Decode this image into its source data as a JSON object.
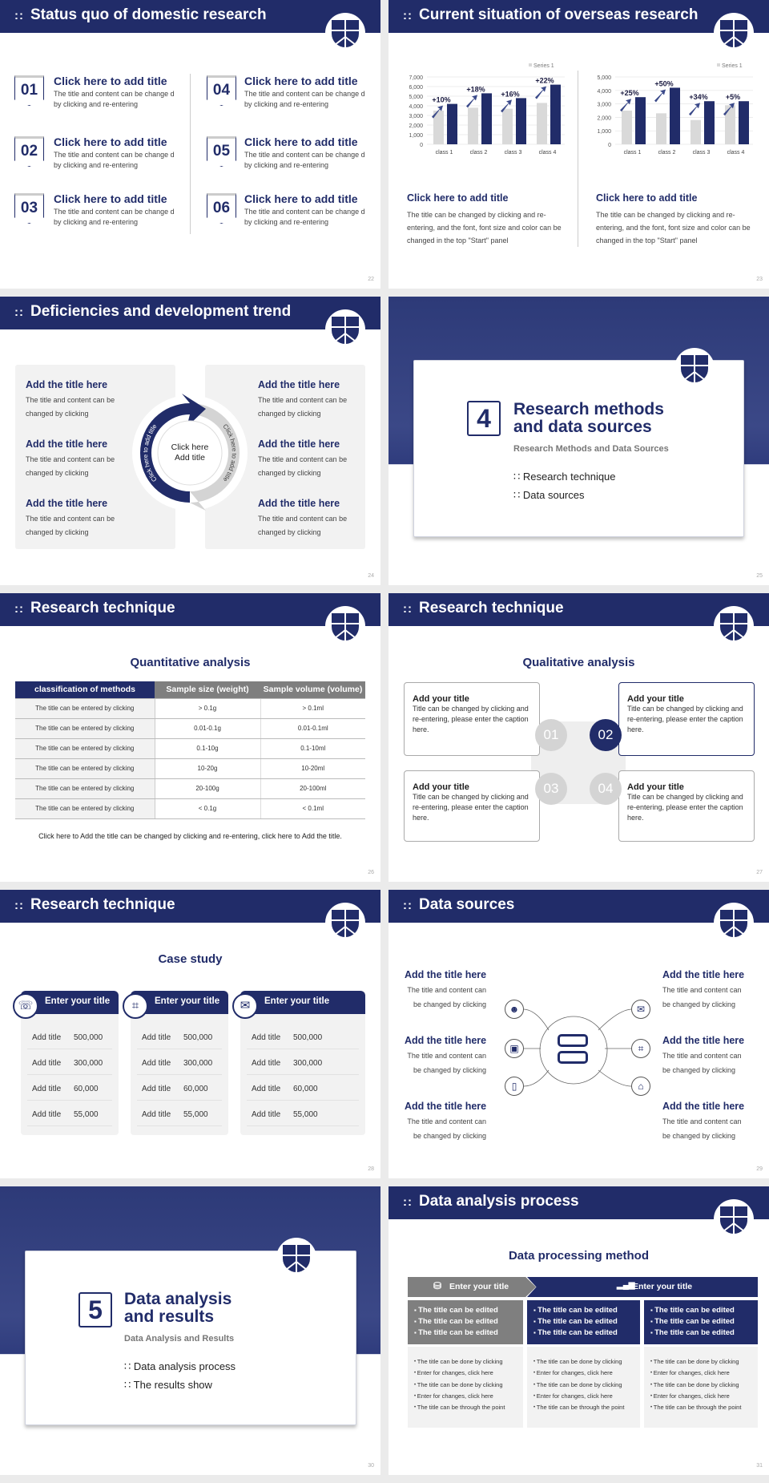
{
  "colors": {
    "navy": "#212c69",
    "gray_bar": "#d9d9d9",
    "panel": "#f2f2f2",
    "gray_header": "#7f7f7f"
  },
  "slides": [
    {
      "title": "Status quo of domestic research",
      "page": "22",
      "items": [
        {
          "num": "01",
          "title": "Click here to add title",
          "desc": "The title and content can be change d by clicking and re-entering"
        },
        {
          "num": "02",
          "title": "Click here to add title",
          "desc": "The title and content can be change d by clicking and re-entering"
        },
        {
          "num": "03",
          "title": "Click here to add title",
          "desc": "The title and content can be change d by clicking and re-entering"
        },
        {
          "num": "04",
          "title": "Click here to add title",
          "desc": "The title and content can be change d by clicking and re-entering"
        },
        {
          "num": "05",
          "title": "Click here to add title",
          "desc": "The title and content can be change d by clicking and re-entering"
        },
        {
          "num": "06",
          "title": "Click here to add title",
          "desc": "The title and content can be change d by clicking and re-entering"
        }
      ]
    },
    {
      "title": "Current situation of overseas research",
      "page": "23",
      "blocks": [
        {
          "title": "Click here to add title",
          "desc": "The title can be changed by clicking and re-entering, and the font, font size and color can be changed in the top \"Start\" panel"
        },
        {
          "title": "Click here to add title",
          "desc": "The title can be changed by clicking and re-entering, and the font, font size and color can be changed in the top \"Start\" panel"
        }
      ]
    },
    {
      "title": "Deficiencies and development trend",
      "page": "24",
      "center": "Click here Add title",
      "arc_left": "Click here to add title",
      "arc_right": "Click here to add title",
      "items": [
        {
          "title": "Add the title here",
          "desc": "The title and content can be changed by clicking"
        },
        {
          "title": "Add the title here",
          "desc": "The title and content can be changed by clicking"
        },
        {
          "title": "Add the title here",
          "desc": "The title and content can be changed by clicking"
        },
        {
          "title": "Add the title here",
          "desc": "The title and content can be changed by clicking"
        },
        {
          "title": "Add the title here",
          "desc": "The title and content can be changed by clicking"
        },
        {
          "title": "Add the title here",
          "desc": "The title and content can be changed by clicking"
        }
      ]
    },
    {
      "number": "4",
      "title_line1": "Research methods",
      "title_line2": "and data sources",
      "subtitle": "Research Methods and Data Sources",
      "bullets": [
        "Research technique",
        "Data sources"
      ],
      "page": "25"
    },
    {
      "title": "Research technique",
      "page": "26",
      "heading": "Quantitative analysis",
      "table": {
        "headers": [
          "classification of methods",
          "Sample size (weight)",
          "Sample volume (volume)"
        ],
        "rows": [
          [
            "The title can be entered by clicking",
            "> 0.1g",
            "> 0.1ml"
          ],
          [
            "The title can be entered by clicking",
            "0.01-0.1g",
            "0.01-0.1ml"
          ],
          [
            "The title can be entered by clicking",
            "0.1-10g",
            "0.1-10ml"
          ],
          [
            "The title can be entered by clicking",
            "10-20g",
            "10-20ml"
          ],
          [
            "The title can be entered by clicking",
            "20-100g",
            "20-100ml"
          ],
          [
            "The title can be entered by clicking",
            "< 0.1g",
            "< 0.1ml"
          ]
        ]
      },
      "footnote": "Click here to Add the title can be changed by clicking and re-entering, click here to Add the title."
    },
    {
      "title": "Research technique",
      "page": "27",
      "heading": "Qualitative analysis",
      "boxes": [
        {
          "num": "01",
          "title": "Add your title",
          "desc": "Title can be changed by clicking and re-entering, please enter the caption here."
        },
        {
          "num": "02",
          "title": "Add your title",
          "desc": "Title can be changed by clicking and re-entering, please enter the caption here."
        },
        {
          "num": "03",
          "title": "Add your title",
          "desc": "Title can be changed by clicking and re-entering, please enter the caption here."
        },
        {
          "num": "04",
          "title": "Add your title",
          "desc": "Title can be changed by clicking and re-entering, please enter the caption here."
        }
      ]
    },
    {
      "title": "Research technique",
      "page": "28",
      "heading": "Case study",
      "cards": [
        {
          "icon": "phone-user-icon",
          "title": "Enter your title",
          "rows": [
            [
              "Add title",
              "500,000"
            ],
            [
              "Add title",
              "300,000"
            ],
            [
              "Add title",
              "60,000"
            ],
            [
              "Add title",
              "55,000"
            ]
          ]
        },
        {
          "icon": "scan-icon",
          "title": "Enter your title",
          "rows": [
            [
              "Add title",
              "500,000"
            ],
            [
              "Add title",
              "300,000"
            ],
            [
              "Add title",
              "60,000"
            ],
            [
              "Add title",
              "55,000"
            ]
          ]
        },
        {
          "icon": "chat-icon",
          "title": "Enter your title",
          "rows": [
            [
              "Add title",
              "500,000"
            ],
            [
              "Add title",
              "300,000"
            ],
            [
              "Add title",
              "60,000"
            ],
            [
              "Add title",
              "55,000"
            ]
          ]
        }
      ]
    },
    {
      "title": "Data sources",
      "page": "29",
      "items": [
        {
          "title": "Add the title here",
          "desc": "The title and content can be changed by clicking",
          "icon": "people-icon"
        },
        {
          "title": "Add the title here",
          "desc": "The title and content can be changed by clicking",
          "icon": "boxes-icon"
        },
        {
          "title": "Add the title here",
          "desc": "The title and content can be changed by clicking",
          "icon": "phone-icon"
        },
        {
          "title": "Add the title here",
          "desc": "The title and content can be changed by clicking",
          "icon": "chat-icon"
        },
        {
          "title": "Add the title here",
          "desc": "The title and content can be changed by clicking",
          "icon": "scan-icon"
        },
        {
          "title": "Add the title here",
          "desc": "The title and content can be changed by clicking",
          "icon": "house-chart-icon"
        }
      ]
    },
    {
      "number": "5",
      "title_line1": "Data analysis",
      "title_line2": "and results",
      "subtitle": "Data Analysis and Results",
      "bullets": [
        "Data analysis process",
        "The results show"
      ],
      "page": "30"
    },
    {
      "title": "Data analysis process",
      "page": "31",
      "heading": "Data processing method",
      "header_left": "Enter your title",
      "header_right": "Enter your title",
      "columns": [
        {
          "top": [
            "The title can be edited",
            "The title can be edited",
            "The title can be edited"
          ],
          "bottom": [
            "The title can be done by clicking",
            "Enter for changes, click here",
            "The title can be done by clicking",
            "Enter for changes, click here",
            "The title can be through the point"
          ]
        },
        {
          "top": [
            "The title can be edited",
            "The title can be edited",
            "The title can be edited"
          ],
          "bottom": [
            "The title can be done by clicking",
            "Enter for changes, click here",
            "The title can be done by clicking",
            "Enter for changes, click here",
            "The title can be through the point"
          ]
        },
        {
          "top": [
            "The title can be edited",
            "The title can be edited",
            "The title can be edited"
          ],
          "bottom": [
            "The title can be done by clicking",
            "Enter for changes, click here",
            "The title can be done by clicking",
            "Enter for changes, click here",
            "The title can be through the point"
          ]
        }
      ]
    }
  ],
  "chart_data": [
    {
      "type": "bar",
      "categories": [
        "class 1",
        "class 2",
        "class 3",
        "class 4"
      ],
      "series": [
        {
          "name": "Series 1",
          "values": [
            3500,
            3800,
            3700,
            4300
          ]
        },
        {
          "values": [
            4200,
            5300,
            4800,
            6200
          ]
        }
      ],
      "annotations": [
        "+10%",
        "+18%",
        "+16%",
        "+22%"
      ],
      "ylim": [
        0,
        7000
      ],
      "yticks": [
        "0",
        "1,000",
        "2,000",
        "3,000",
        "4,000",
        "5,000",
        "6,000",
        "7,000"
      ],
      "legend": "top-right",
      "grid": true
    },
    {
      "type": "bar",
      "categories": [
        "class 1",
        "class 2",
        "class 3",
        "class 4"
      ],
      "series": [
        {
          "name": "Series 1",
          "values": [
            2500,
            2300,
            1800,
            2900
          ]
        },
        {
          "values": [
            3500,
            4200,
            3200,
            3200
          ]
        }
      ],
      "annotations": [
        "+25%",
        "+50%",
        "+34%",
        "+5%"
      ],
      "ylim": [
        0,
        5000
      ],
      "yticks": [
        "0",
        "1,000",
        "2,000",
        "3,000",
        "4,000",
        "5,000"
      ],
      "legend": "top-right",
      "grid": true
    }
  ]
}
